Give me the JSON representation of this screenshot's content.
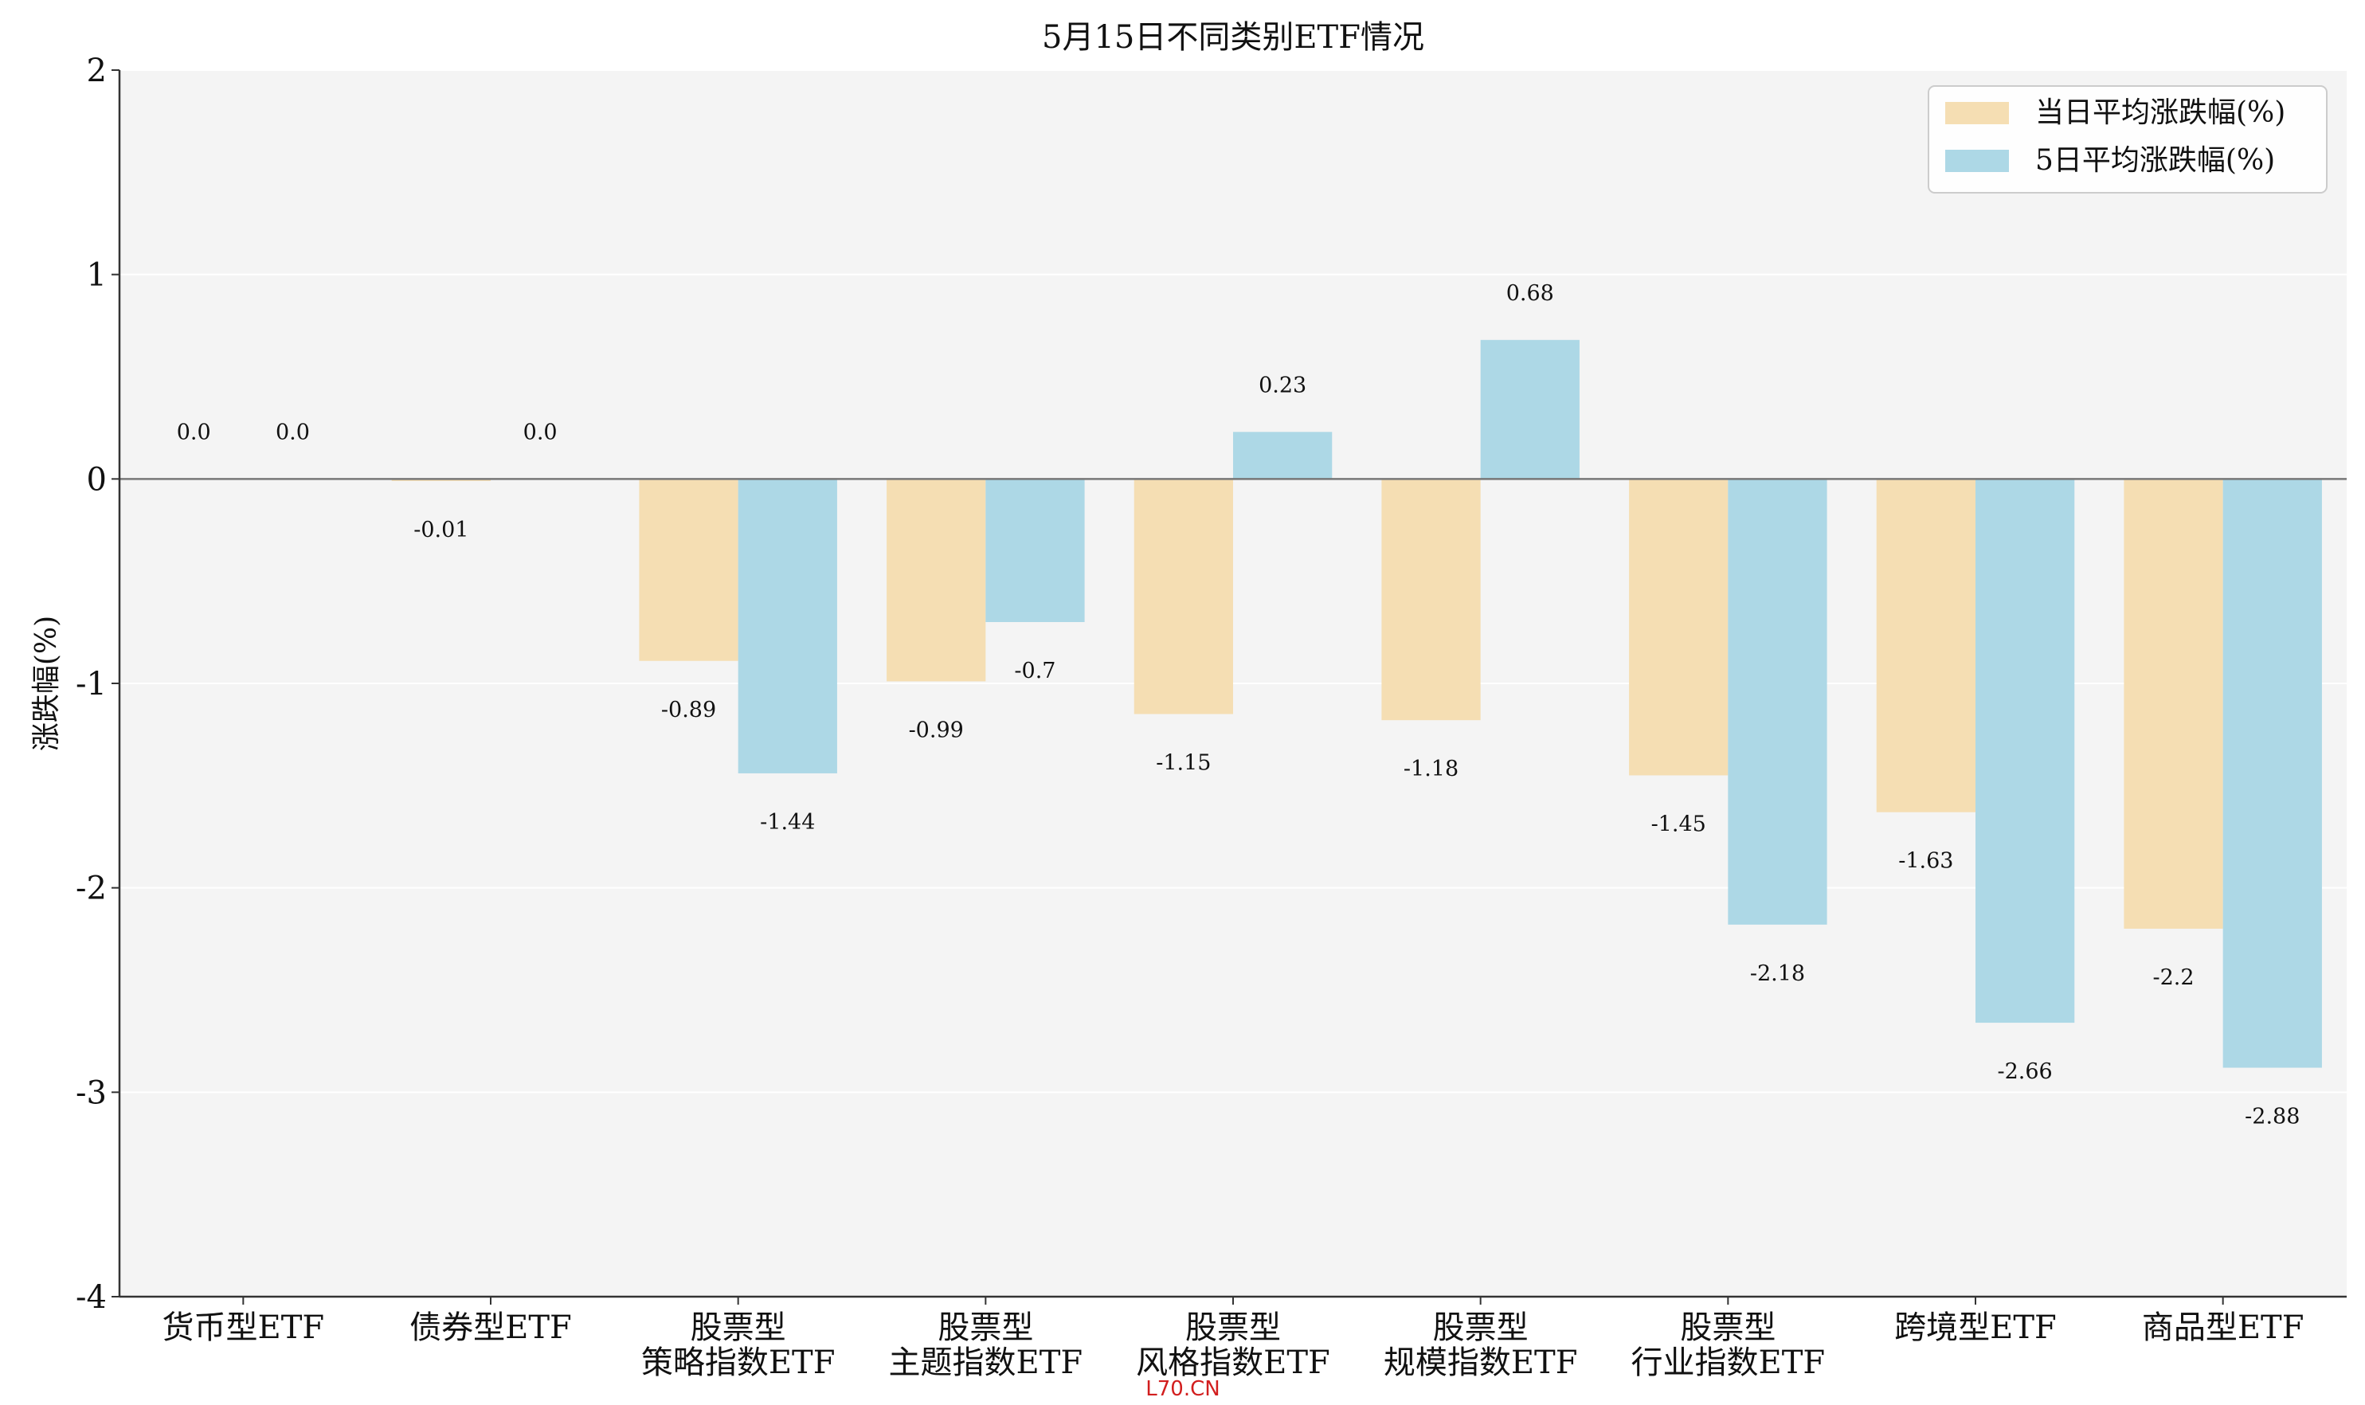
{
  "chart_data": {
    "type": "bar",
    "title": "5月15日不同类别ETF情况",
    "ylabel": "涨跌幅(%)",
    "xlabel": "",
    "ylim": [
      -4,
      2
    ],
    "yticks": [
      "2",
      "1",
      "0",
      "-1",
      "-2",
      "-3",
      "-4"
    ],
    "categories": [
      [
        "货币型ETF"
      ],
      [
        "债券型ETF"
      ],
      [
        "股票型",
        "策略指数ETF"
      ],
      [
        "股票型",
        "主题指数ETF"
      ],
      [
        "股票型",
        "风格指数ETF"
      ],
      [
        "股票型",
        "规模指数ETF"
      ],
      [
        "股票型",
        "行业指数ETF"
      ],
      [
        "跨境型ETF"
      ],
      [
        "商品型ETF"
      ]
    ],
    "series": [
      {
        "name": "当日平均涨跌幅(%)",
        "color": "#f5deb3",
        "values": [
          0.0,
          -0.01,
          -0.89,
          -0.99,
          -1.15,
          -1.18,
          -1.45,
          -1.63,
          -2.2
        ],
        "labels": [
          "0.0",
          "-0.01",
          "-0.89",
          "-0.99",
          "-1.15",
          "-1.18",
          "-1.45",
          "-1.63",
          "-2.2"
        ]
      },
      {
        "name": "5日平均涨跌幅(%)",
        "color": "#add8e6",
        "values": [
          0.0,
          0.0,
          -1.44,
          -0.7,
          0.23,
          0.68,
          -2.18,
          -2.66,
          -2.88
        ],
        "labels": [
          "0.0",
          "0.0",
          "-1.44",
          "-0.7",
          "0.23",
          "0.68",
          "-2.18",
          "-2.66",
          "-2.88"
        ]
      }
    ],
    "legend_position": "top-right",
    "grid": true,
    "background": "#f4f4f4"
  },
  "watermark": "L70.CN"
}
